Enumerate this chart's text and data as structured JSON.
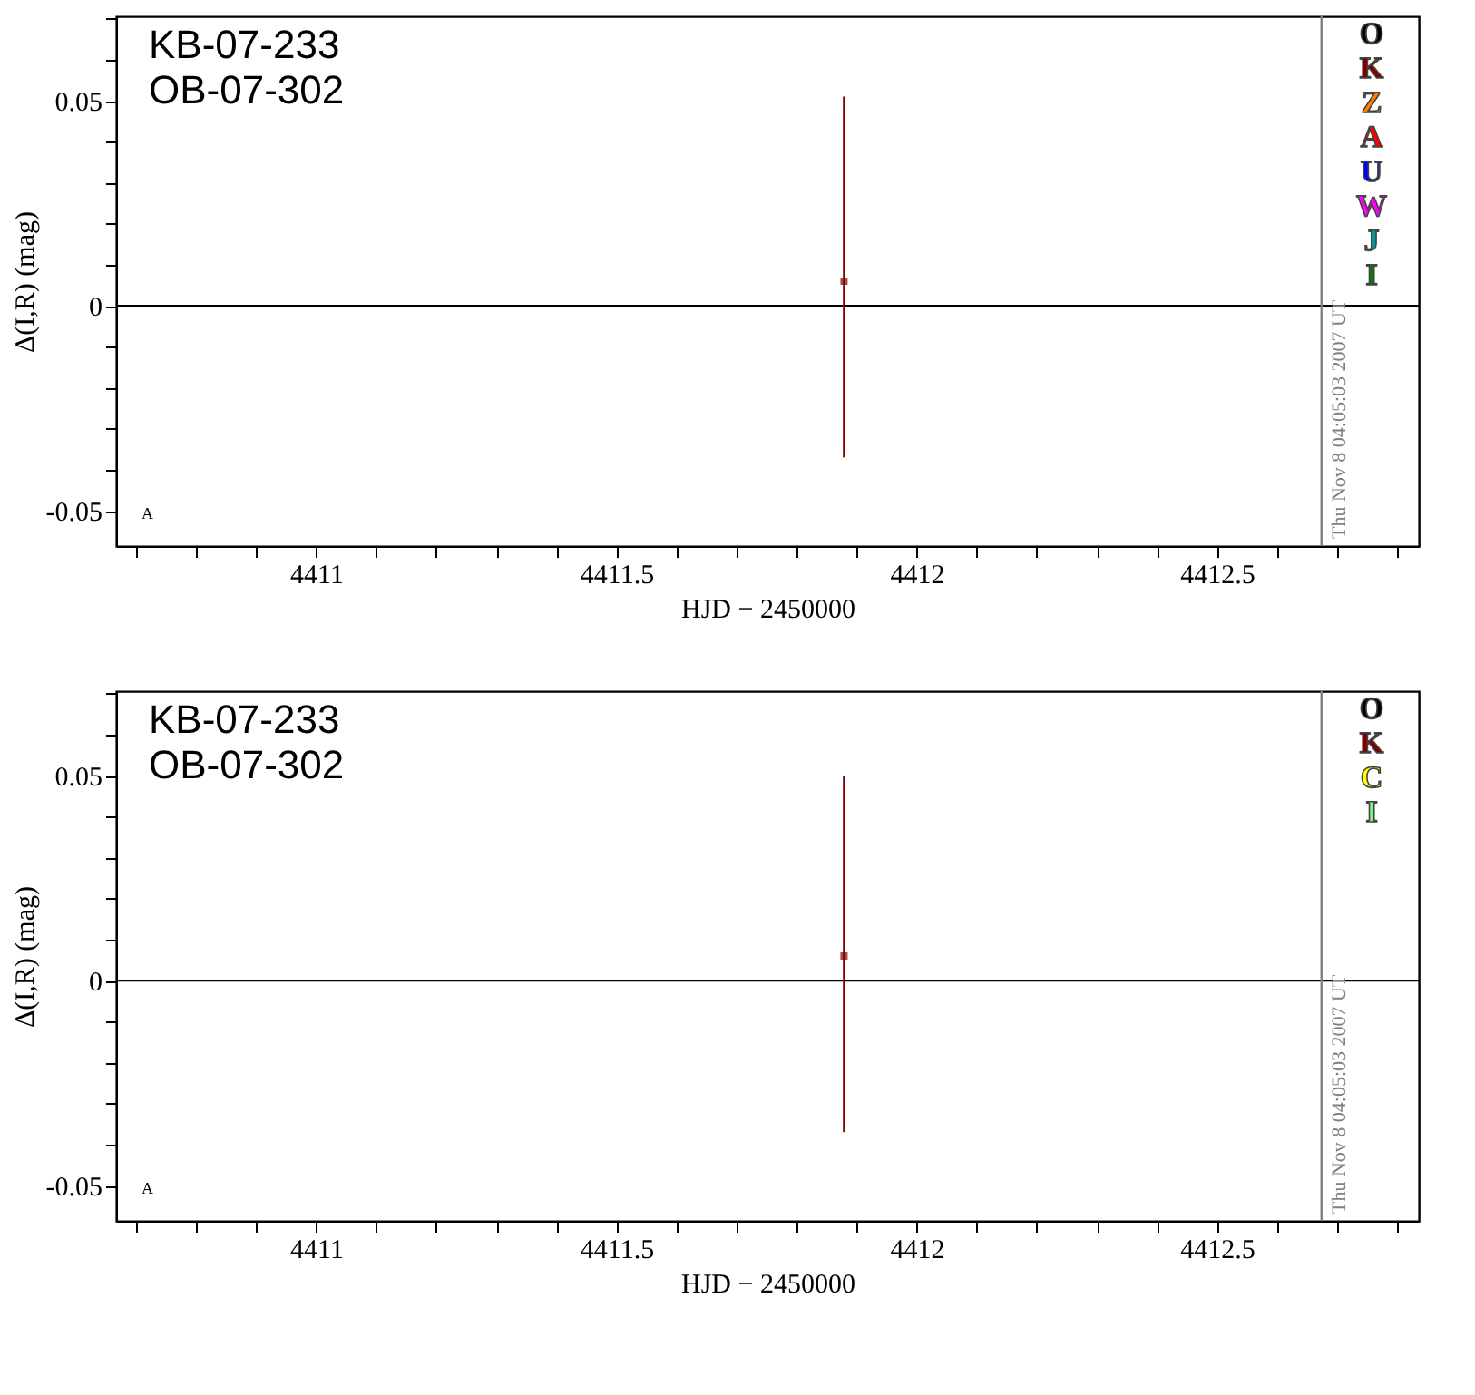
{
  "chart_data": [
    {
      "type": "scatter",
      "title": "KB-07-233\nOB-07-302",
      "xlabel": "HJD − 2450000",
      "ylabel": "Δ(I,R) (mag)",
      "x": [
        4411.879
      ],
      "series": [
        {
          "name": "O",
          "color": "#000000",
          "values": [
            null
          ]
        },
        {
          "name": "K",
          "color": "#800000",
          "values": [
            0.006
          ],
          "errors": [
            [
              -0.037,
              0.051
            ]
          ]
        },
        {
          "name": "Z",
          "color": "#ff8000",
          "values": [
            null
          ]
        },
        {
          "name": "A",
          "color": "#ff0000",
          "values": [
            null
          ]
        },
        {
          "name": "U",
          "color": "#0000ff",
          "values": [
            null
          ]
        },
        {
          "name": "W",
          "color": "#ff00ff",
          "values": [
            null
          ]
        },
        {
          "name": "J",
          "color": "#009999",
          "values": [
            null
          ]
        },
        {
          "name": "I",
          "color": "#008000",
          "values": [
            null
          ]
        }
      ],
      "xlim": [
        4410.667,
        4412.836
      ],
      "ylim": [
        -0.0586,
        0.0706
      ],
      "xticks": [
        {
          "value": 4410.7,
          "label": null
        },
        {
          "value": 4410.8,
          "label": null
        },
        {
          "value": 4410.9,
          "label": null
        },
        4411,
        {
          "value": 4411.1,
          "label": null
        },
        {
          "value": 4411.2,
          "label": null
        },
        {
          "value": 4411.3,
          "label": null
        },
        {
          "value": 4411.4,
          "label": null
        },
        4411.5,
        {
          "value": 4411.6,
          "label": null
        },
        {
          "value": 4411.7,
          "label": null
        },
        {
          "value": 4411.8,
          "label": null
        },
        {
          "value": 4411.9,
          "label": null
        },
        4412,
        {
          "value": 4412.1,
          "label": null
        },
        {
          "value": 4412.2,
          "label": null
        },
        {
          "value": 4412.3,
          "label": null
        },
        {
          "value": 4412.4,
          "label": null
        },
        4412.5,
        {
          "value": 4412.6,
          "label": null
        },
        {
          "value": 4412.7,
          "label": null
        },
        {
          "value": 4412.8,
          "label": null
        }
      ],
      "yticks": [
        -0.05,
        {
          "value": -0.04,
          "label": null
        },
        {
          "value": -0.03,
          "label": null
        },
        {
          "value": -0.02,
          "label": null
        },
        {
          "value": -0.01,
          "label": null
        },
        0,
        {
          "value": 0.01,
          "label": null
        },
        {
          "value": 0.02,
          "label": null
        },
        {
          "value": 0.03,
          "label": null
        },
        {
          "value": 0.04,
          "label": null
        },
        0.05,
        {
          "value": 0.06,
          "label": null
        },
        {
          "value": 0.07,
          "label": null
        }
      ],
      "ref_lines": [
        {
          "axis": "y",
          "value": 0,
          "color": "#000000"
        },
        {
          "axis": "x",
          "value": 4412.674,
          "color": "#808080"
        }
      ],
      "annotations": [
        "A",
        "Thu Nov  8 04:05:03 2007 UT"
      ],
      "marker": "square",
      "grid": false
    },
    {
      "type": "scatter",
      "title": "KB-07-233\nOB-07-302",
      "xlabel": "HJD − 2450000",
      "ylabel": "Δ(I,R) (mag)",
      "x": [
        4411.879
      ],
      "series": [
        {
          "name": "O",
          "color": "#000000",
          "values": [
            null
          ]
        },
        {
          "name": "K",
          "color": "#800000",
          "values": [
            0.006
          ],
          "errors": [
            [
              -0.037,
              0.05
            ]
          ]
        },
        {
          "name": "C",
          "color": "#ffff00",
          "values": [
            null
          ]
        },
        {
          "name": "I",
          "color": "#80ff80",
          "values": [
            null
          ]
        }
      ],
      "xlim": [
        4410.667,
        4412.836
      ],
      "ylim": [
        -0.0586,
        0.0706
      ],
      "xticks": [
        {
          "value": 4410.7,
          "label": null
        },
        {
          "value": 4410.8,
          "label": null
        },
        {
          "value": 4410.9,
          "label": null
        },
        4411,
        {
          "value": 4411.1,
          "label": null
        },
        {
          "value": 4411.2,
          "label": null
        },
        {
          "value": 4411.3,
          "label": null
        },
        {
          "value": 4411.4,
          "label": null
        },
        4411.5,
        {
          "value": 4411.6,
          "label": null
        },
        {
          "value": 4411.7,
          "label": null
        },
        {
          "value": 4411.8,
          "label": null
        },
        {
          "value": 4411.9,
          "label": null
        },
        4412,
        {
          "value": 4412.1,
          "label": null
        },
        {
          "value": 4412.2,
          "label": null
        },
        {
          "value": 4412.3,
          "label": null
        },
        {
          "value": 4412.4,
          "label": null
        },
        4412.5,
        {
          "value": 4412.6,
          "label": null
        },
        {
          "value": 4412.7,
          "label": null
        },
        {
          "value": 4412.8,
          "label": null
        }
      ],
      "yticks": [
        -0.05,
        {
          "value": -0.04,
          "label": null
        },
        {
          "value": -0.03,
          "label": null
        },
        {
          "value": -0.02,
          "label": null
        },
        {
          "value": -0.01,
          "label": null
        },
        0,
        {
          "value": 0.01,
          "label": null
        },
        {
          "value": 0.02,
          "label": null
        },
        {
          "value": 0.03,
          "label": null
        },
        {
          "value": 0.04,
          "label": null
        },
        0.05,
        {
          "value": 0.06,
          "label": null
        },
        {
          "value": 0.07,
          "label": null
        }
      ],
      "ref_lines": [
        {
          "axis": "y",
          "value": 0,
          "color": "#000000"
        },
        {
          "axis": "x",
          "value": 4412.674,
          "color": "#808080"
        }
      ],
      "annotations": [
        "A",
        "Thu Nov  8 04:05:03 2007 UT"
      ],
      "marker": "square",
      "grid": false
    }
  ]
}
